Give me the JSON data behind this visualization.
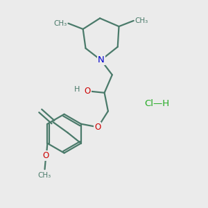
{
  "bg_color": "#ebebeb",
  "bond_color": "#4a7a6a",
  "bond_width": 1.6,
  "atom_N_color": "#0000cc",
  "atom_O_color": "#cc0000",
  "HCl_color": "#22aa22",
  "figsize": [
    3.0,
    3.0
  ],
  "dpi": 100,
  "xlim": [
    0,
    10
  ],
  "ylim": [
    0,
    10
  ]
}
